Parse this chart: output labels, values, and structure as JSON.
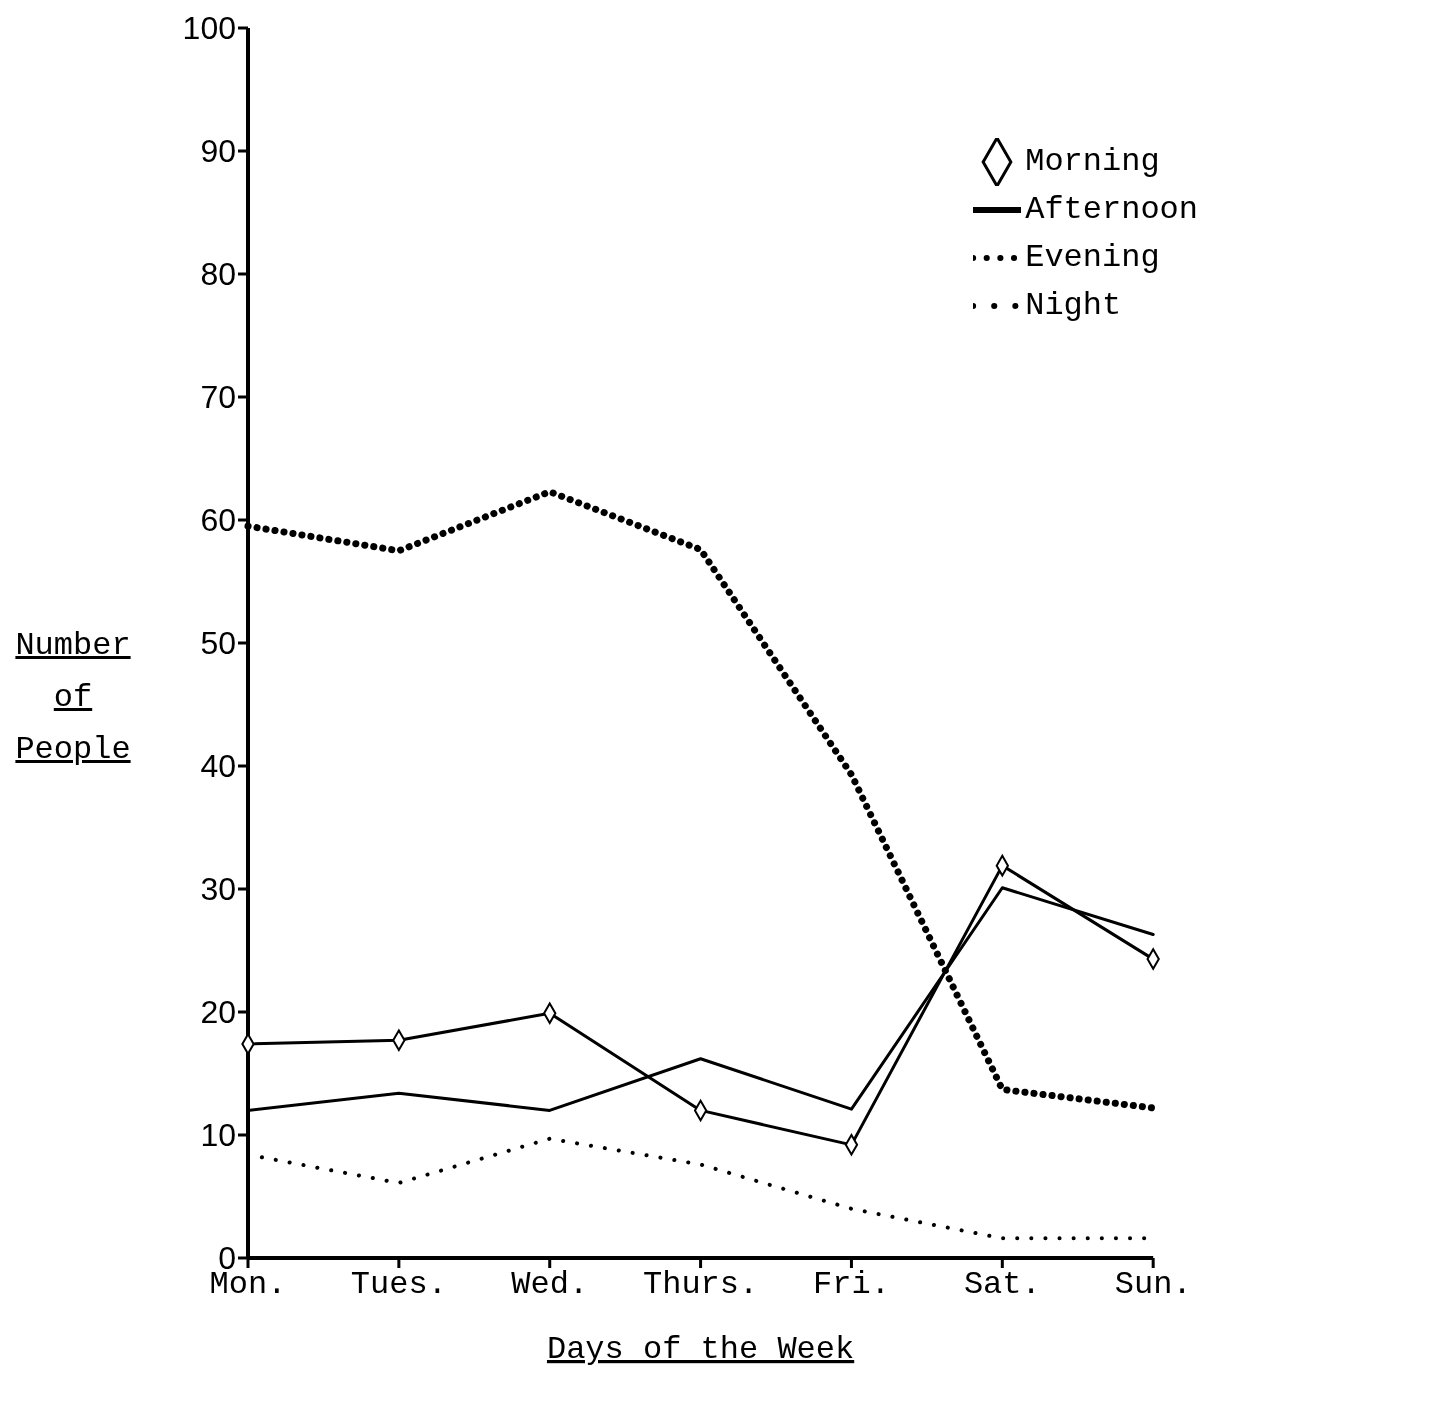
{
  "chart_data": {
    "type": "line",
    "xlabel": "Days of the Week",
    "ylabel": "Number of People",
    "categories": [
      "Mon.",
      "Tues.",
      "Wed.",
      "Thurs.",
      "Fri.",
      "Sat.",
      "Sun."
    ],
    "ylim": [
      0,
      100
    ],
    "yticks": [
      0,
      10,
      20,
      30,
      40,
      50,
      60,
      70,
      80,
      90,
      100
    ],
    "grid": false,
    "legend": "top right",
    "series": [
      {
        "name": "Morning",
        "color": "#000000",
        "marker": "diamond",
        "line_style": "solid",
        "values": [
          17.4,
          17.7,
          19.9,
          12,
          9.2,
          31.9,
          24.3
        ]
      },
      {
        "name": "Afternoon",
        "color": "#000000",
        "marker": "none",
        "line_style": "solid",
        "values": [
          12,
          13.4,
          12,
          16.2,
          12.1,
          30.1,
          26.3
        ]
      },
      {
        "name": "Evening",
        "color": "#000000",
        "marker": "none",
        "line_style": "dashed",
        "values": [
          59.5,
          57.5,
          62.3,
          57.6,
          39.3,
          13.7,
          12.2
        ]
      },
      {
        "name": "Night",
        "color": "#000000",
        "marker": "none",
        "line_style": "dotted",
        "values": [
          8.4,
          6.1,
          9.7,
          7.6,
          4,
          1.6,
          1.6
        ]
      }
    ]
  }
}
